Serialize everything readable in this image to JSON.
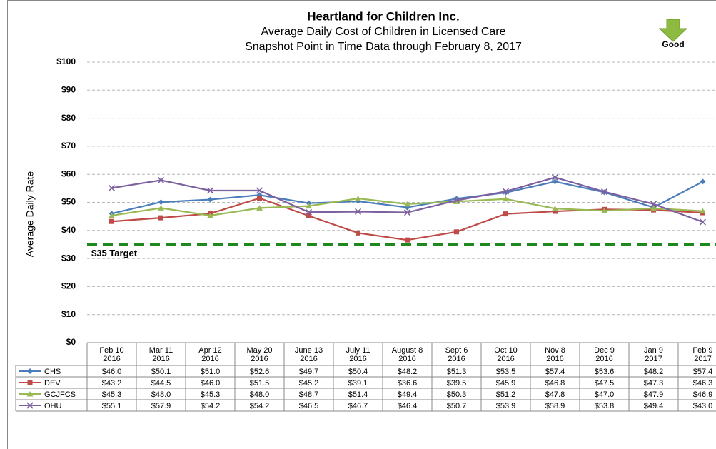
{
  "chart_data": {
    "type": "line",
    "title": "Heartland for Children Inc.",
    "subtitle": [
      "Average Daily Cost of Children in Licensed Care",
      "Snapshot Point in Time Data through February 8, 2017"
    ],
    "annotation": "Good",
    "ylabel": "Average Daily Rate",
    "categories": [
      [
        "Feb 10",
        "2016"
      ],
      [
        "Mar 11",
        "2016"
      ],
      [
        "Apr 12",
        "2016"
      ],
      [
        "May 20",
        "2016"
      ],
      [
        "June 13",
        "2016"
      ],
      [
        "July 11",
        "2016"
      ],
      [
        "August 8",
        "2016"
      ],
      [
        "Sept 6",
        "2016"
      ],
      [
        "Oct 10",
        "2016"
      ],
      [
        "Nov 8",
        "2016"
      ],
      [
        "Dec 9",
        "2016"
      ],
      [
        "Jan 9",
        "2017"
      ],
      [
        "Feb 9",
        "2017"
      ]
    ],
    "series": [
      {
        "name": "CHS",
        "color": "#4a7ebb",
        "marker": "diamond",
        "values": [
          46.0,
          50.1,
          51.0,
          52.6,
          49.7,
          50.4,
          48.2,
          51.3,
          53.5,
          57.4,
          53.6,
          48.2,
          57.4
        ],
        "value_labels": [
          "$46.0",
          "$50.1",
          "$51.0",
          "$52.6",
          "$49.7",
          "$50.4",
          "$48.2",
          "$51.3",
          "$53.5",
          "$57.4",
          "$53.6",
          "$48.2",
          "$57.4"
        ]
      },
      {
        "name": "DEV",
        "color": "#be4b48",
        "marker": "square",
        "values": [
          43.2,
          44.5,
          46.0,
          51.5,
          45.2,
          39.1,
          36.6,
          39.5,
          45.9,
          46.8,
          47.5,
          47.3,
          46.3
        ],
        "value_labels": [
          "$43.2",
          "$44.5",
          "$46.0",
          "$51.5",
          "$45.2",
          "$39.1",
          "$36.6",
          "$39.5",
          "$45.9",
          "$46.8",
          "$47.5",
          "$47.3",
          "$46.3"
        ]
      },
      {
        "name": "GCJFCS",
        "color": "#98b954",
        "marker": "triangle",
        "values": [
          45.3,
          48.0,
          45.3,
          48.0,
          48.7,
          51.4,
          49.4,
          50.3,
          51.2,
          47.8,
          47.0,
          47.9,
          46.9
        ],
        "value_labels": [
          "$45.3",
          "$48.0",
          "$45.3",
          "$48.0",
          "$48.7",
          "$51.4",
          "$49.4",
          "$50.3",
          "$51.2",
          "$47.8",
          "$47.0",
          "$47.9",
          "$46.9"
        ]
      },
      {
        "name": "OHU",
        "color": "#7d60a0",
        "marker": "x",
        "values": [
          55.1,
          57.9,
          54.2,
          54.2,
          46.5,
          46.7,
          46.4,
          50.7,
          53.9,
          58.9,
          53.8,
          49.4,
          43.0
        ],
        "value_labels": [
          "$55.1",
          "$57.9",
          "$54.2",
          "$54.2",
          "$46.5",
          "$46.7",
          "$46.4",
          "$50.7",
          "$53.9",
          "$58.9",
          "$53.8",
          "$49.4",
          "$43.0"
        ]
      }
    ],
    "target": {
      "value": 35,
      "label": "$35 Target",
      "color": "#1e8a1e"
    },
    "ylim": [
      0,
      100
    ],
    "yticks": [
      {
        "value": 0,
        "label": "$0"
      },
      {
        "value": 10,
        "label": "$10"
      },
      {
        "value": 20,
        "label": "$20"
      },
      {
        "value": 30,
        "label": "$30"
      },
      {
        "value": 40,
        "label": "$40"
      },
      {
        "value": 50,
        "label": "$50"
      },
      {
        "value": 60,
        "label": "$60"
      },
      {
        "value": 70,
        "label": "$70"
      },
      {
        "value": 80,
        "label": "$80"
      },
      {
        "value": 90,
        "label": "$90"
      },
      {
        "value": 100,
        "label": "$100"
      }
    ],
    "grid": true
  }
}
